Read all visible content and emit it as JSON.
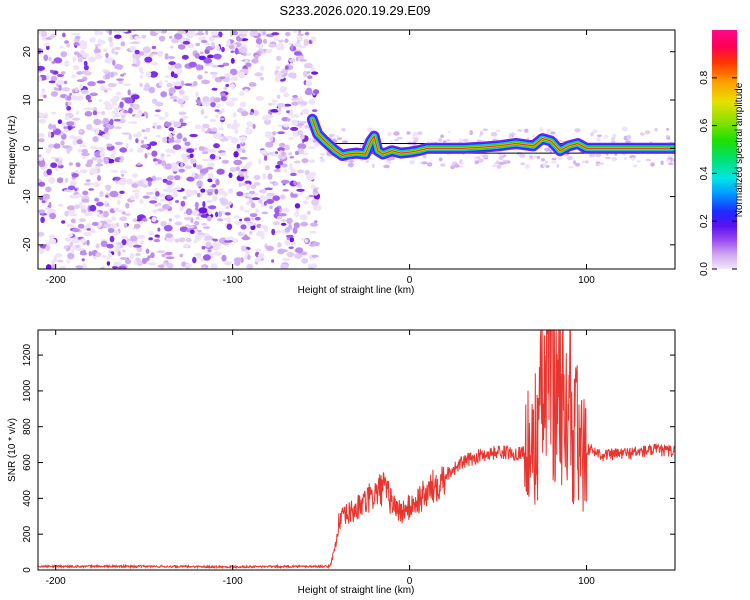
{
  "title": "S233.2026.020.19.29.E09",
  "chart_data": [
    {
      "type": "heatmap",
      "title": "S233.2026.020.19.29.E09",
      "xlabel": "Height of straight line (km)",
      "ylabel": "Frequency (Hz)",
      "xlim": [
        -210,
        150
      ],
      "ylim": [
        -25,
        24.5
      ],
      "xticks": [
        -200,
        -100,
        0,
        100
      ],
      "yticks": [
        -20,
        -10,
        0,
        10,
        20
      ],
      "noise_region_x": [
        -210,
        -52
      ],
      "signal_trace": {
        "x": [
          -55,
          -52,
          -48,
          -45,
          -42,
          -38,
          -35,
          -30,
          -25,
          -22,
          -20,
          -18,
          -15,
          -10,
          -5,
          0,
          5,
          10,
          15,
          20,
          30,
          40,
          50,
          60,
          70,
          75,
          80,
          85,
          90,
          95,
          100,
          110,
          120,
          130,
          140,
          150
        ],
        "y": [
          6,
          3,
          1.5,
          0.5,
          -0.5,
          -1.5,
          -1.2,
          -1,
          -1.2,
          1.5,
          2.5,
          -0.5,
          -1.2,
          -0.5,
          -1,
          -0.8,
          -0.5,
          0,
          0,
          0,
          0,
          0.2,
          0.5,
          1,
          0.5,
          2,
          1.5,
          -0.5,
          0.5,
          1,
          0,
          0,
          0,
          0,
          0,
          0
        ]
      },
      "reference_lines_hz": [
        -1,
        1
      ]
    },
    {
      "type": "line",
      "xlabel": "Height of straight line (km)",
      "ylabel": "SNR (10 * v/v)",
      "xlim": [
        -210,
        150
      ],
      "ylim": [
        0,
        1340
      ],
      "xticks": [
        -200,
        -100,
        0,
        100
      ],
      "yticks": [
        0,
        200,
        400,
        600,
        800,
        1000,
        1200
      ],
      "series": [
        {
          "name": "SNR",
          "color": "#e8352f",
          "x": [
            -210,
            -150,
            -100,
            -60,
            -45,
            -42,
            -40,
            -35,
            -30,
            -25,
            -20,
            -15,
            -10,
            -5,
            0,
            10,
            20,
            30,
            40,
            50,
            60,
            65,
            70,
            72,
            75,
            78,
            80,
            82,
            85,
            88,
            90,
            92,
            94,
            96,
            100,
            110,
            120,
            130,
            140,
            150
          ],
          "y": [
            20,
            20,
            18,
            20,
            20,
            130,
            270,
            310,
            340,
            380,
            420,
            460,
            380,
            320,
            350,
            430,
            530,
            600,
            640,
            660,
            650,
            660,
            640,
            820,
            950,
            1100,
            1340,
            900,
            1200,
            700,
            1150,
            550,
            900,
            600,
            680,
            640,
            650,
            660,
            670,
            660
          ]
        }
      ]
    },
    {
      "type": "colorbar",
      "label": "Normalized spectral amplitude",
      "ticks": [
        0.0,
        0.2,
        0.4,
        0.6,
        0.8
      ],
      "range": [
        0,
        1
      ]
    }
  ]
}
